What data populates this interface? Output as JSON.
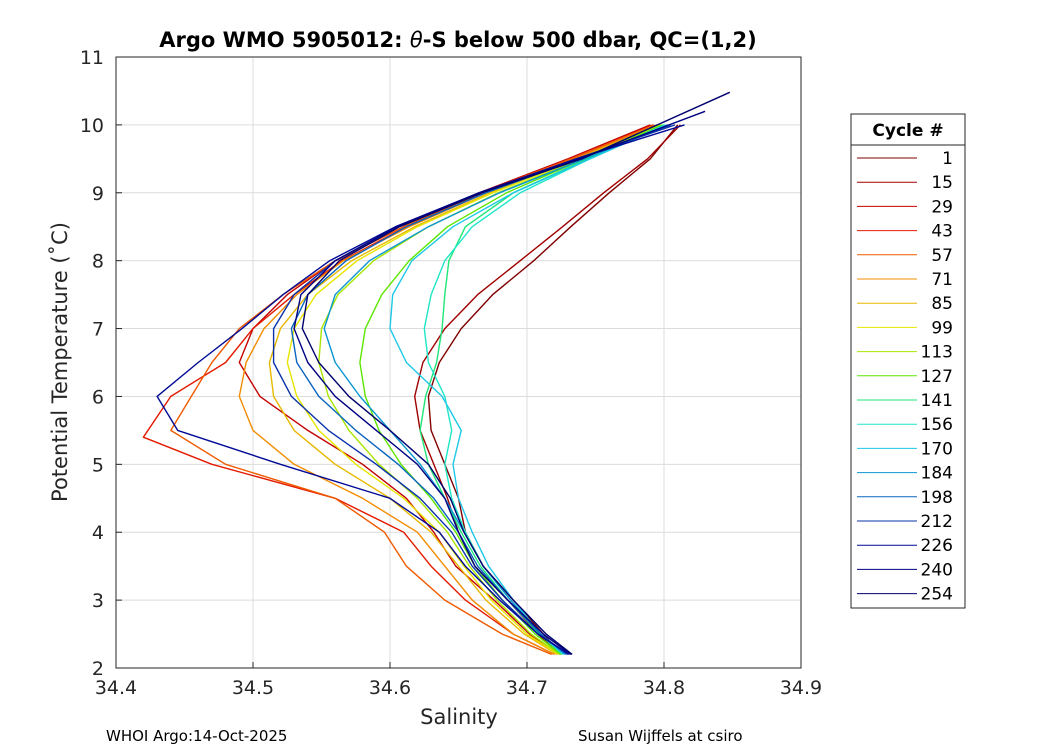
{
  "chart_data": {
    "type": "line",
    "title_main": "Argo WMO 5905012: ",
    "title_theta": "θ",
    "title_rest": "-S below 500 dbar,  QC=(1,2)",
    "xlabel": "Salinity",
    "ylabel": "Potential Temperature (˚C)",
    "xlim": [
      34.4,
      34.9
    ],
    "ylim": [
      2,
      11
    ],
    "xticks": [
      "34.4",
      "34.5",
      "34.6",
      "34.7",
      "34.8",
      "34.9"
    ],
    "yticks": [
      "2",
      "3",
      "4",
      "5",
      "6",
      "7",
      "8",
      "9",
      "10",
      "11"
    ],
    "grid": true,
    "legend_title": "Cycle #",
    "legend_placement": "outside-right",
    "series": [
      {
        "name": "1",
        "color": "#800000",
        "salinity": [
          34.725,
          34.712,
          34.69,
          34.668,
          34.655,
          34.65,
          34.64,
          34.63,
          34.628,
          34.636,
          34.652,
          34.675,
          34.705,
          34.732,
          34.76,
          34.79,
          34.81
        ],
        "theta": [
          2.2,
          2.5,
          3.0,
          3.5,
          4.0,
          4.5,
          5.0,
          5.5,
          6.0,
          6.5,
          7.0,
          7.5,
          8.0,
          8.5,
          9.0,
          9.5,
          10.0
        ]
      },
      {
        "name": "15",
        "color": "#a00000",
        "salinity": [
          34.724,
          34.708,
          34.686,
          34.662,
          34.65,
          34.642,
          34.632,
          34.622,
          34.618,
          34.624,
          34.64,
          34.664,
          34.695,
          34.726,
          34.756,
          34.788,
          34.812
        ],
        "theta": [
          2.2,
          2.5,
          3.0,
          3.5,
          4.0,
          4.5,
          5.0,
          5.5,
          6.0,
          6.5,
          7.0,
          7.5,
          8.0,
          8.5,
          9.0,
          9.5,
          10.0
        ]
      },
      {
        "name": "29",
        "color": "#c40000",
        "salinity": [
          34.722,
          34.702,
          34.676,
          34.648,
          34.632,
          34.612,
          34.58,
          34.54,
          34.505,
          34.49,
          34.5,
          34.525,
          34.56,
          34.61,
          34.665,
          34.73,
          34.79
        ],
        "theta": [
          2.2,
          2.5,
          3.0,
          3.5,
          4.0,
          4.5,
          5.0,
          5.5,
          6.0,
          6.5,
          7.0,
          7.5,
          8.0,
          8.5,
          9.0,
          9.5,
          10.0
        ]
      },
      {
        "name": "43",
        "color": "#e41a00",
        "salinity": [
          34.72,
          34.69,
          34.655,
          34.63,
          34.61,
          34.56,
          34.47,
          34.42,
          34.44,
          34.48,
          34.5,
          34.53,
          34.565,
          34.612,
          34.668,
          34.733,
          34.792
        ],
        "theta": [
          2.2,
          2.5,
          3.0,
          3.5,
          4.0,
          4.5,
          5.0,
          5.4,
          6.0,
          6.5,
          7.0,
          7.5,
          8.0,
          8.5,
          9.0,
          9.5,
          10.0
        ]
      },
      {
        "name": "57",
        "color": "#f05a00",
        "salinity": [
          34.718,
          34.682,
          34.64,
          34.612,
          34.596,
          34.56,
          34.48,
          34.44,
          34.455,
          34.47,
          34.49,
          34.522,
          34.56,
          34.61,
          34.667,
          34.732,
          34.793
        ],
        "theta": [
          2.2,
          2.5,
          3.0,
          3.5,
          4.0,
          4.5,
          5.0,
          5.5,
          6.0,
          6.5,
          7.0,
          7.5,
          8.0,
          8.5,
          9.0,
          9.5,
          10.0
        ]
      },
      {
        "name": "71",
        "color": "#f28c00",
        "salinity": [
          34.72,
          34.69,
          34.66,
          34.64,
          34.62,
          34.58,
          34.53,
          34.5,
          34.49,
          34.495,
          34.508,
          34.532,
          34.566,
          34.614,
          34.67,
          34.735,
          34.795
        ],
        "theta": [
          2.2,
          2.5,
          3.0,
          3.5,
          4.0,
          4.5,
          5.0,
          5.5,
          6.0,
          6.5,
          7.0,
          7.5,
          8.0,
          8.5,
          9.0,
          9.5,
          10.0
        ]
      },
      {
        "name": "85",
        "color": "#e8b800",
        "salinity": [
          34.722,
          34.698,
          34.67,
          34.65,
          34.63,
          34.6,
          34.56,
          34.53,
          34.515,
          34.512,
          34.52,
          34.54,
          34.572,
          34.618,
          34.673,
          34.737,
          34.796
        ],
        "theta": [
          2.2,
          2.5,
          3.0,
          3.5,
          4.0,
          4.5,
          5.0,
          5.5,
          6.0,
          6.5,
          7.0,
          7.5,
          8.0,
          8.5,
          9.0,
          9.5,
          10.0
        ]
      },
      {
        "name": "99",
        "color": "#e6e600",
        "salinity": [
          34.723,
          34.7,
          34.674,
          34.654,
          34.636,
          34.61,
          34.575,
          34.548,
          34.532,
          34.525,
          34.53,
          34.546,
          34.576,
          34.62,
          34.675,
          34.738,
          34.797
        ],
        "theta": [
          2.2,
          2.5,
          3.0,
          3.5,
          4.0,
          4.5,
          5.0,
          5.5,
          6.0,
          6.5,
          7.0,
          7.5,
          8.0,
          8.5,
          9.0,
          9.5,
          10.0
        ]
      },
      {
        "name": "113",
        "color": "#a8e600",
        "salinity": [
          34.724,
          34.703,
          34.678,
          34.658,
          34.642,
          34.62,
          34.592,
          34.57,
          34.555,
          34.548,
          34.55,
          34.562,
          34.588,
          34.628,
          34.679,
          34.74,
          34.798
        ],
        "theta": [
          2.2,
          2.5,
          3.0,
          3.5,
          4.0,
          4.5,
          5.0,
          5.5,
          6.0,
          6.5,
          7.0,
          7.5,
          8.0,
          8.5,
          9.0,
          9.5,
          10.0
        ]
      },
      {
        "name": "127",
        "color": "#5ee600",
        "salinity": [
          34.725,
          34.706,
          34.682,
          34.662,
          34.648,
          34.63,
          34.608,
          34.592,
          34.582,
          34.578,
          34.582,
          34.594,
          34.614,
          34.642,
          34.685,
          34.742,
          34.799
        ],
        "theta": [
          2.2,
          2.5,
          3.0,
          3.5,
          4.0,
          4.5,
          5.0,
          5.5,
          6.0,
          6.5,
          7.0,
          7.5,
          8.0,
          8.5,
          9.0,
          9.5,
          10.0
        ]
      },
      {
        "name": "141",
        "color": "#1ee678",
        "salinity": [
          34.726,
          34.709,
          34.686,
          34.666,
          34.652,
          34.64,
          34.628,
          34.622,
          34.626,
          34.634,
          34.638,
          34.64,
          34.643,
          34.655,
          34.69,
          34.744,
          34.8
        ],
        "theta": [
          2.2,
          2.5,
          3.0,
          3.5,
          4.0,
          4.5,
          5.0,
          5.5,
          6.0,
          6.5,
          7.0,
          7.5,
          8.0,
          8.5,
          9.0,
          9.5,
          10.0
        ]
      },
      {
        "name": "156",
        "color": "#1ee6c8",
        "salinity": [
          34.726,
          34.71,
          34.688,
          34.668,
          34.655,
          34.645,
          34.64,
          34.645,
          34.64,
          34.628,
          34.625,
          34.63,
          34.64,
          34.66,
          34.695,
          34.746,
          34.801
        ],
        "theta": [
          2.2,
          2.5,
          3.0,
          3.5,
          4.0,
          4.5,
          5.0,
          5.5,
          6.0,
          6.5,
          7.0,
          7.5,
          8.0,
          8.5,
          9.0,
          9.5,
          10.0
        ]
      },
      {
        "name": "170",
        "color": "#1ec8e6",
        "salinity": [
          34.727,
          34.71,
          34.69,
          34.672,
          34.66,
          34.65,
          34.646,
          34.652,
          34.638,
          34.612,
          34.6,
          34.602,
          34.616,
          34.646,
          34.69,
          34.746,
          34.802
        ],
        "theta": [
          2.2,
          2.5,
          3.0,
          3.5,
          4.0,
          4.5,
          5.0,
          5.5,
          6.0,
          6.5,
          7.0,
          7.5,
          8.0,
          8.5,
          9.0,
          9.5,
          10.0
        ]
      },
      {
        "name": "184",
        "color": "#0a96d2",
        "salinity": [
          34.728,
          34.71,
          34.688,
          34.668,
          34.654,
          34.64,
          34.622,
          34.6,
          34.578,
          34.56,
          34.552,
          34.56,
          34.585,
          34.628,
          34.68,
          34.742,
          34.803
        ],
        "theta": [
          2.2,
          2.5,
          3.0,
          3.5,
          4.0,
          4.5,
          5.0,
          5.5,
          6.0,
          6.5,
          7.0,
          7.5,
          8.0,
          8.5,
          9.0,
          9.5,
          10.0
        ]
      },
      {
        "name": "198",
        "color": "#0a64be",
        "salinity": [
          34.729,
          34.71,
          34.686,
          34.664,
          34.65,
          34.632,
          34.606,
          34.575,
          34.548,
          34.532,
          34.528,
          34.54,
          34.568,
          34.612,
          34.67,
          34.738,
          34.805
        ],
        "theta": [
          2.2,
          2.5,
          3.0,
          3.5,
          4.0,
          4.5,
          5.0,
          5.5,
          6.0,
          6.5,
          7.0,
          7.5,
          8.0,
          8.5,
          9.0,
          9.5,
          10.0
        ]
      },
      {
        "name": "212",
        "color": "#0a32aa",
        "salinity": [
          34.73,
          34.708,
          34.682,
          34.66,
          34.645,
          34.622,
          34.59,
          34.555,
          34.528,
          34.515,
          34.515,
          34.53,
          34.56,
          34.606,
          34.666,
          34.736,
          34.808
        ],
        "theta": [
          2.2,
          2.5,
          3.0,
          3.5,
          4.0,
          4.5,
          5.0,
          5.5,
          6.0,
          6.5,
          7.0,
          7.5,
          8.0,
          8.5,
          9.0,
          9.5,
          10.0
        ]
      },
      {
        "name": "226",
        "color": "#000a96",
        "salinity": [
          34.731,
          34.708,
          34.68,
          34.655,
          34.636,
          34.6,
          34.52,
          34.445,
          34.43,
          34.46,
          34.492,
          34.522,
          34.556,
          34.604,
          34.665,
          34.736,
          34.815
        ],
        "theta": [
          2.2,
          2.5,
          3.0,
          3.5,
          4.0,
          4.5,
          5.0,
          5.5,
          6.0,
          6.5,
          7.0,
          7.5,
          8.0,
          8.5,
          9.0,
          9.5,
          10.0
        ]
      },
      {
        "name": "240",
        "color": "#000082",
        "salinity": [
          34.732,
          34.712,
          34.686,
          34.662,
          34.65,
          34.64,
          34.62,
          34.59,
          34.56,
          34.54,
          34.53,
          34.535,
          34.56,
          34.605,
          34.665,
          34.738,
          34.83
        ],
        "theta": [
          2.2,
          2.5,
          3.0,
          3.5,
          4.0,
          4.5,
          5.0,
          5.5,
          6.0,
          6.5,
          7.0,
          7.5,
          8.0,
          8.5,
          9.0,
          9.5,
          10.2
        ]
      },
      {
        "name": "254",
        "color": "#00006e",
        "salinity": [
          34.733,
          34.714,
          34.69,
          34.668,
          34.654,
          34.644,
          34.628,
          34.6,
          34.57,
          34.548,
          34.536,
          34.54,
          34.563,
          34.607,
          34.667,
          34.74,
          34.848
        ],
        "theta": [
          2.2,
          2.5,
          3.0,
          3.5,
          4.0,
          4.5,
          5.0,
          5.5,
          6.0,
          6.5,
          7.0,
          7.5,
          8.0,
          8.5,
          9.0,
          9.5,
          10.48
        ]
      }
    ]
  },
  "footer": {
    "left": "WHOI Argo:14-Oct-2025",
    "right": "Susan Wijffels at csiro"
  }
}
